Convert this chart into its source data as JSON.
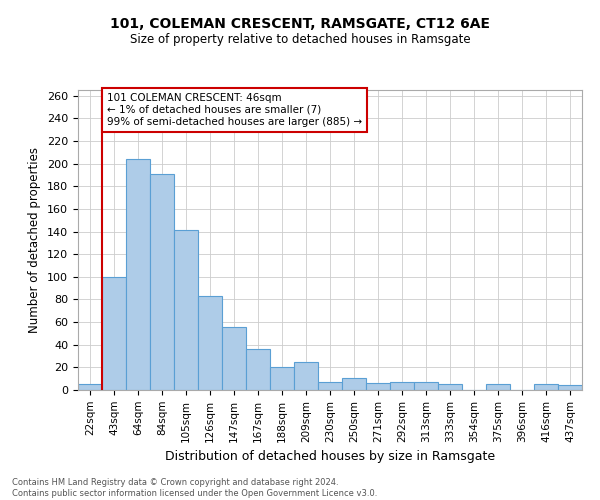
{
  "title": "101, COLEMAN CRESCENT, RAMSGATE, CT12 6AE",
  "subtitle": "Size of property relative to detached houses in Ramsgate",
  "xlabel": "Distribution of detached houses by size in Ramsgate",
  "ylabel": "Number of detached properties",
  "bin_labels": [
    "22sqm",
    "43sqm",
    "64sqm",
    "84sqm",
    "105sqm",
    "126sqm",
    "147sqm",
    "167sqm",
    "188sqm",
    "209sqm",
    "230sqm",
    "250sqm",
    "271sqm",
    "292sqm",
    "313sqm",
    "333sqm",
    "354sqm",
    "375sqm",
    "396sqm",
    "416sqm",
    "437sqm"
  ],
  "bar_values": [
    5,
    100,
    204,
    191,
    141,
    83,
    56,
    36,
    20,
    25,
    7,
    11,
    6,
    7,
    7,
    5,
    0,
    5,
    0,
    5,
    4
  ],
  "bar_color": "#aecce8",
  "bar_edge_color": "#5a9fd4",
  "vline_color": "#cc0000",
  "annotation_box_text": "101 COLEMAN CRESCENT: 46sqm\n← 1% of detached houses are smaller (7)\n99% of semi-detached houses are larger (885) →",
  "annotation_box_color": "#cc0000",
  "ylim": [
    0,
    265
  ],
  "yticks": [
    0,
    20,
    40,
    60,
    80,
    100,
    120,
    140,
    160,
    180,
    200,
    220,
    240,
    260
  ],
  "footer_line1": "Contains HM Land Registry data © Crown copyright and database right 2024.",
  "footer_line2": "Contains public sector information licensed under the Open Government Licence v3.0.",
  "bg_color": "#ffffff",
  "grid_color": "#cccccc"
}
